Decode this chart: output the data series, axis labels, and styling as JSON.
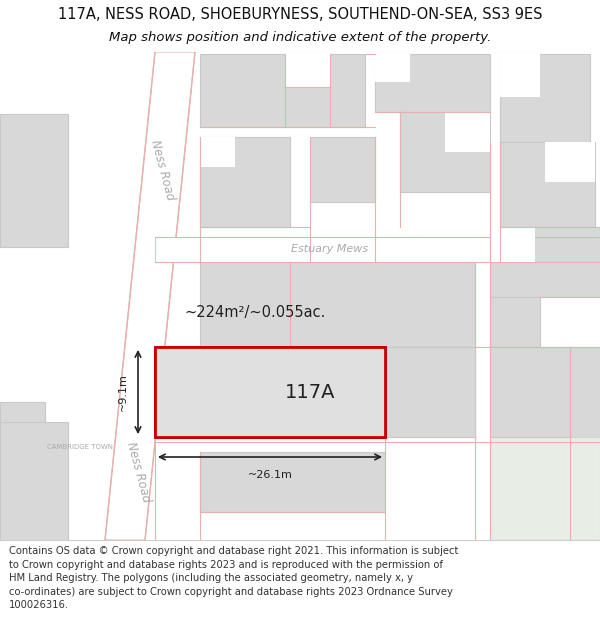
{
  "title": "117A, NESS ROAD, SHOEBURYNESS, SOUTHEND-ON-SEA, SS3 9ES",
  "subtitle": "Map shows position and indicative extent of the property.",
  "footer_text": "Contains OS data © Crown copyright and database right 2021. This information is subject\nto Crown copyright and database rights 2023 and is reproduced with the permission of\nHM Land Registry. The polygons (including the associated geometry, namely x, y\nco-ordinates) are subject to Crown copyright and database rights 2023 Ordnance Survey\n100026316.",
  "map_bg": "#f7f7f7",
  "road_white": "#ffffff",
  "road_line": "#e8b0b0",
  "building_fill": "#d8d8d8",
  "building_edge": "#c8c8c8",
  "property_fill": "#e0e0e0",
  "property_edge": "#cc0000",
  "label_color": "#aaaaaa",
  "text_color": "#222222",
  "area_text": "~224m²/~0.055ac.",
  "label_117A": "117A",
  "dim_width": "~26.1m",
  "dim_height": "~9.1m",
  "cambridge_town": "CAMBRIDGE TOWN",
  "estuary_mews": "Estuary Mews",
  "ness_road": "Ness Road",
  "title_fontsize": 10.5,
  "subtitle_fontsize": 9.5,
  "footer_fontsize": 7.2,
  "green_fill": "#e8ede6",
  "green_edge": "#d0d8cc"
}
